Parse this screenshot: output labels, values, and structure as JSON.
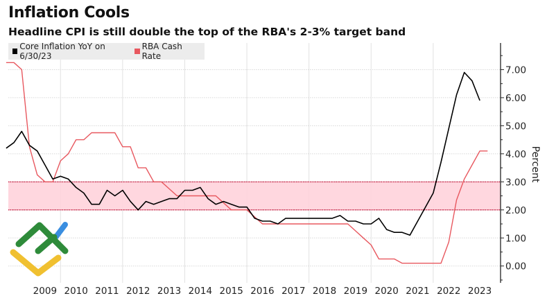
{
  "title": "Inflation Cools",
  "subtitle": "Headline CPI is still double the top of the RBA's 2-3% target band",
  "logo": {
    "name": "watermark-logo",
    "colors": [
      "#2e8b3a",
      "#3a8ee0",
      "#f0c030"
    ]
  },
  "chart_data": {
    "type": "line",
    "title": "Inflation Cools",
    "subtitle": "Headline CPI is still double the top of the RBA's 2-3% target band",
    "ylabel": "Percent",
    "xlabel": "",
    "ylim": [
      -0.6,
      7.95
    ],
    "xlim": [
      "2008-01",
      "2024-01"
    ],
    "y_axis_side": "right",
    "grid": true,
    "legend_placement": "top-left",
    "x_tick_labels": [
      "2009",
      "2010",
      "2011",
      "2012",
      "2013",
      "2014",
      "2015",
      "2016",
      "2017",
      "2018",
      "2019",
      "2020",
      "2021",
      "2022",
      "2023"
    ],
    "y_tick_labels": [
      "0.00",
      "1.00",
      "2.00",
      "3.00",
      "4.00",
      "5.00",
      "6.00",
      "7.00"
    ],
    "y_ticks": [
      0,
      1,
      2,
      3,
      4,
      5,
      6,
      7
    ],
    "target_band": {
      "low": 2,
      "high": 3,
      "fill": "#ffd3dc",
      "border": "#c8284a"
    },
    "dates": [
      "2008-03",
      "2008-06",
      "2008-09",
      "2008-12",
      "2009-03",
      "2009-06",
      "2009-09",
      "2009-12",
      "2010-03",
      "2010-06",
      "2010-09",
      "2010-12",
      "2011-03",
      "2011-06",
      "2011-09",
      "2011-12",
      "2012-03",
      "2012-06",
      "2012-09",
      "2012-12",
      "2013-03",
      "2013-06",
      "2013-09",
      "2013-12",
      "2014-03",
      "2014-06",
      "2014-09",
      "2014-12",
      "2015-03",
      "2015-06",
      "2015-09",
      "2015-12",
      "2016-03",
      "2016-06",
      "2016-09",
      "2016-12",
      "2017-03",
      "2017-06",
      "2017-09",
      "2017-12",
      "2018-03",
      "2018-06",
      "2018-09",
      "2018-12",
      "2019-03",
      "2019-06",
      "2019-09",
      "2019-12",
      "2020-03",
      "2020-06",
      "2020-09",
      "2020-12",
      "2021-03",
      "2021-06",
      "2021-09",
      "2021-12",
      "2022-03",
      "2022-06",
      "2022-09",
      "2022-12",
      "2023-03",
      "2023-06",
      "2023-09"
    ],
    "series": [
      {
        "name": "Core Inflation YoY on 6/30/23",
        "color": "#000000",
        "values": [
          4.2,
          4.4,
          4.8,
          4.3,
          4.1,
          3.6,
          3.1,
          3.2,
          3.1,
          2.8,
          2.6,
          2.2,
          2.2,
          2.7,
          2.5,
          2.7,
          2.3,
          2.0,
          2.3,
          2.2,
          2.3,
          2.4,
          2.4,
          2.7,
          2.7,
          2.8,
          2.4,
          2.2,
          2.3,
          2.2,
          2.1,
          2.1,
          1.7,
          1.6,
          1.6,
          1.5,
          1.7,
          1.7,
          1.7,
          1.7,
          1.7,
          1.7,
          1.7,
          1.8,
          1.6,
          1.6,
          1.5,
          1.5,
          1.7,
          1.3,
          1.2,
          1.2,
          1.1,
          1.6,
          2.1,
          2.6,
          3.7,
          4.9,
          6.1,
          6.9,
          6.6,
          5.9,
          null
        ]
      },
      {
        "name": "RBA Cash Rate",
        "color": "#e8585f",
        "values": [
          7.25,
          7.25,
          7.0,
          4.25,
          3.25,
          3.0,
          3.0,
          3.75,
          4.0,
          4.5,
          4.5,
          4.75,
          4.75,
          4.75,
          4.75,
          4.25,
          4.25,
          3.5,
          3.5,
          3.0,
          3.0,
          2.75,
          2.5,
          2.5,
          2.5,
          2.5,
          2.5,
          2.5,
          2.25,
          2.0,
          2.0,
          2.0,
          1.75,
          1.5,
          1.5,
          1.5,
          1.5,
          1.5,
          1.5,
          1.5,
          1.5,
          1.5,
          1.5,
          1.5,
          1.5,
          1.25,
          1.0,
          0.75,
          0.25,
          0.25,
          0.25,
          0.1,
          0.1,
          0.1,
          0.1,
          0.1,
          0.1,
          0.85,
          2.35,
          3.1,
          3.6,
          4.1,
          4.1
        ]
      }
    ]
  }
}
